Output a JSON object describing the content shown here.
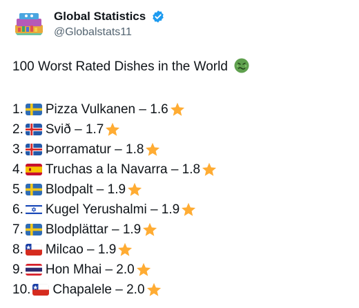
{
  "header": {
    "display_name": "Global Statistics",
    "handle": "@Globalstats11",
    "verified": true
  },
  "post": {
    "title": "100 Worst Rated Dishes in the World",
    "title_icon": "nauseated-face-icon",
    "items": [
      {
        "number": "1.",
        "flag": "sweden",
        "text": "Pizza Vulkanen – 1.6",
        "rating": 1.6
      },
      {
        "number": "2.",
        "flag": "iceland",
        "text": "Svið – 1.7",
        "rating": 1.7
      },
      {
        "number": "3.",
        "flag": "iceland",
        "text": "Þorramatur – 1.8",
        "rating": 1.8
      },
      {
        "number": "4.",
        "flag": "spain",
        "text": "Truchas a la Navarra – 1.8",
        "rating": 1.8
      },
      {
        "number": "5.",
        "flag": "sweden",
        "text": "Blodpalt – 1.9",
        "rating": 1.9
      },
      {
        "number": "6.",
        "flag": "israel",
        "text": "Kugel Yerushalmi – 1.9",
        "rating": 1.9
      },
      {
        "number": "7.",
        "flag": "sweden",
        "text": "Blodplättar – 1.9",
        "rating": 1.9
      },
      {
        "number": "8.",
        "flag": "chile",
        "text": "Milcao – 1.9",
        "rating": 1.9
      },
      {
        "number": "9.",
        "flag": "thailand",
        "text": "Hon Mhai – 2.0",
        "rating": 2.0
      },
      {
        "number": "10.",
        "flag": "chile",
        "text": "Chapalele – 2.0",
        "rating": 2.0
      }
    ]
  },
  "colors": {
    "text": "#0f1419",
    "secondary_text": "#536471",
    "verified": "#1d9bf0",
    "star": "#ffac33"
  }
}
